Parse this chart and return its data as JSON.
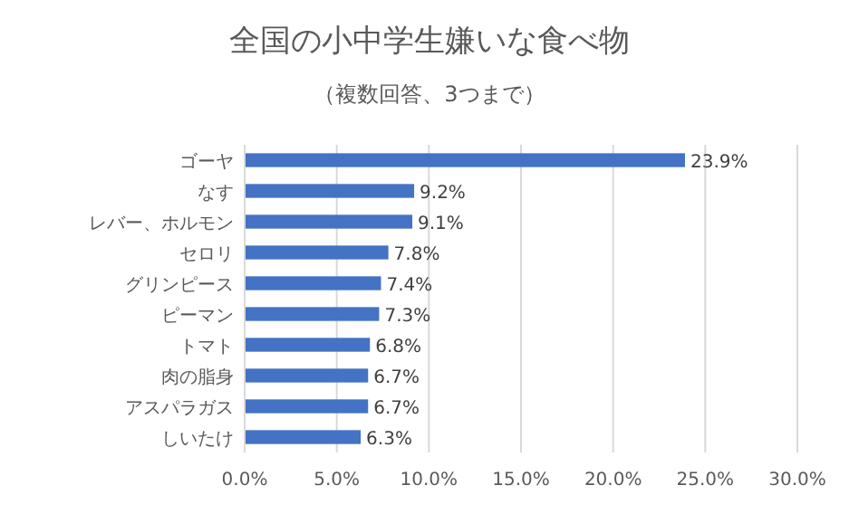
{
  "chart_data": {
    "type": "bar",
    "orientation": "horizontal",
    "title": "全国の小中学生嫌いな食べ物",
    "subtitle": "（複数回答、3つまで）",
    "categories": [
      "ゴーヤ",
      "なす",
      "レバー、ホルモン",
      "セロリ",
      "グリンピース",
      "ピーマン",
      "トマト",
      "肉の脂身",
      "アスパラガス",
      "しいたけ"
    ],
    "values": [
      23.9,
      9.2,
      9.1,
      7.8,
      7.4,
      7.3,
      6.8,
      6.7,
      6.7,
      6.3
    ],
    "value_labels": [
      "23.9%",
      "9.2%",
      "9.1%",
      "7.8%",
      "7.4%",
      "7.3%",
      "6.8%",
      "6.7%",
      "6.7%",
      "6.3%"
    ],
    "color": "#4472c4",
    "xlim": [
      0,
      30
    ],
    "xticks": [
      {
        "value": 0,
        "label": "0.0%"
      },
      {
        "value": 5,
        "label": "5.0%"
      },
      {
        "value": 10,
        "label": "10.0%"
      },
      {
        "value": 15,
        "label": "15.0%"
      },
      {
        "value": 20,
        "label": "20.0%"
      },
      {
        "value": 25,
        "label": "25.0%"
      },
      {
        "value": 30,
        "label": "30.0%"
      }
    ],
    "grid": "x"
  }
}
